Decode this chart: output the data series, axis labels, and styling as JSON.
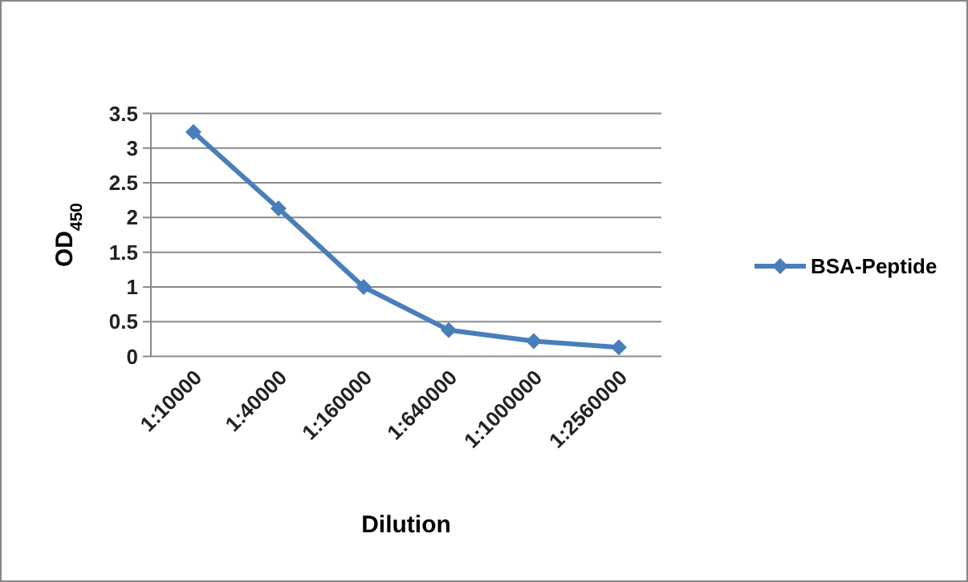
{
  "chart_data": {
    "type": "line",
    "xlabel": "Dilution",
    "ylabel": "OD$_{450}$",
    "categories": [
      "1:10000",
      "1:40000",
      "1:160000",
      "1:640000",
      "1:1000000",
      "1:2560000"
    ],
    "series": [
      {
        "name": "BSA-Peptide",
        "color": "#4a7ebb",
        "values": [
          3.23,
          2.13,
          1.0,
          0.38,
          0.22,
          0.13
        ]
      }
    ],
    "ylim": [
      0,
      3.5
    ],
    "yticks": [
      0,
      0.5,
      1,
      1.5,
      2,
      2.5,
      3,
      3.5
    ],
    "grid": "y",
    "legend": "right",
    "marker": "diamond",
    "line_style": "solid"
  }
}
